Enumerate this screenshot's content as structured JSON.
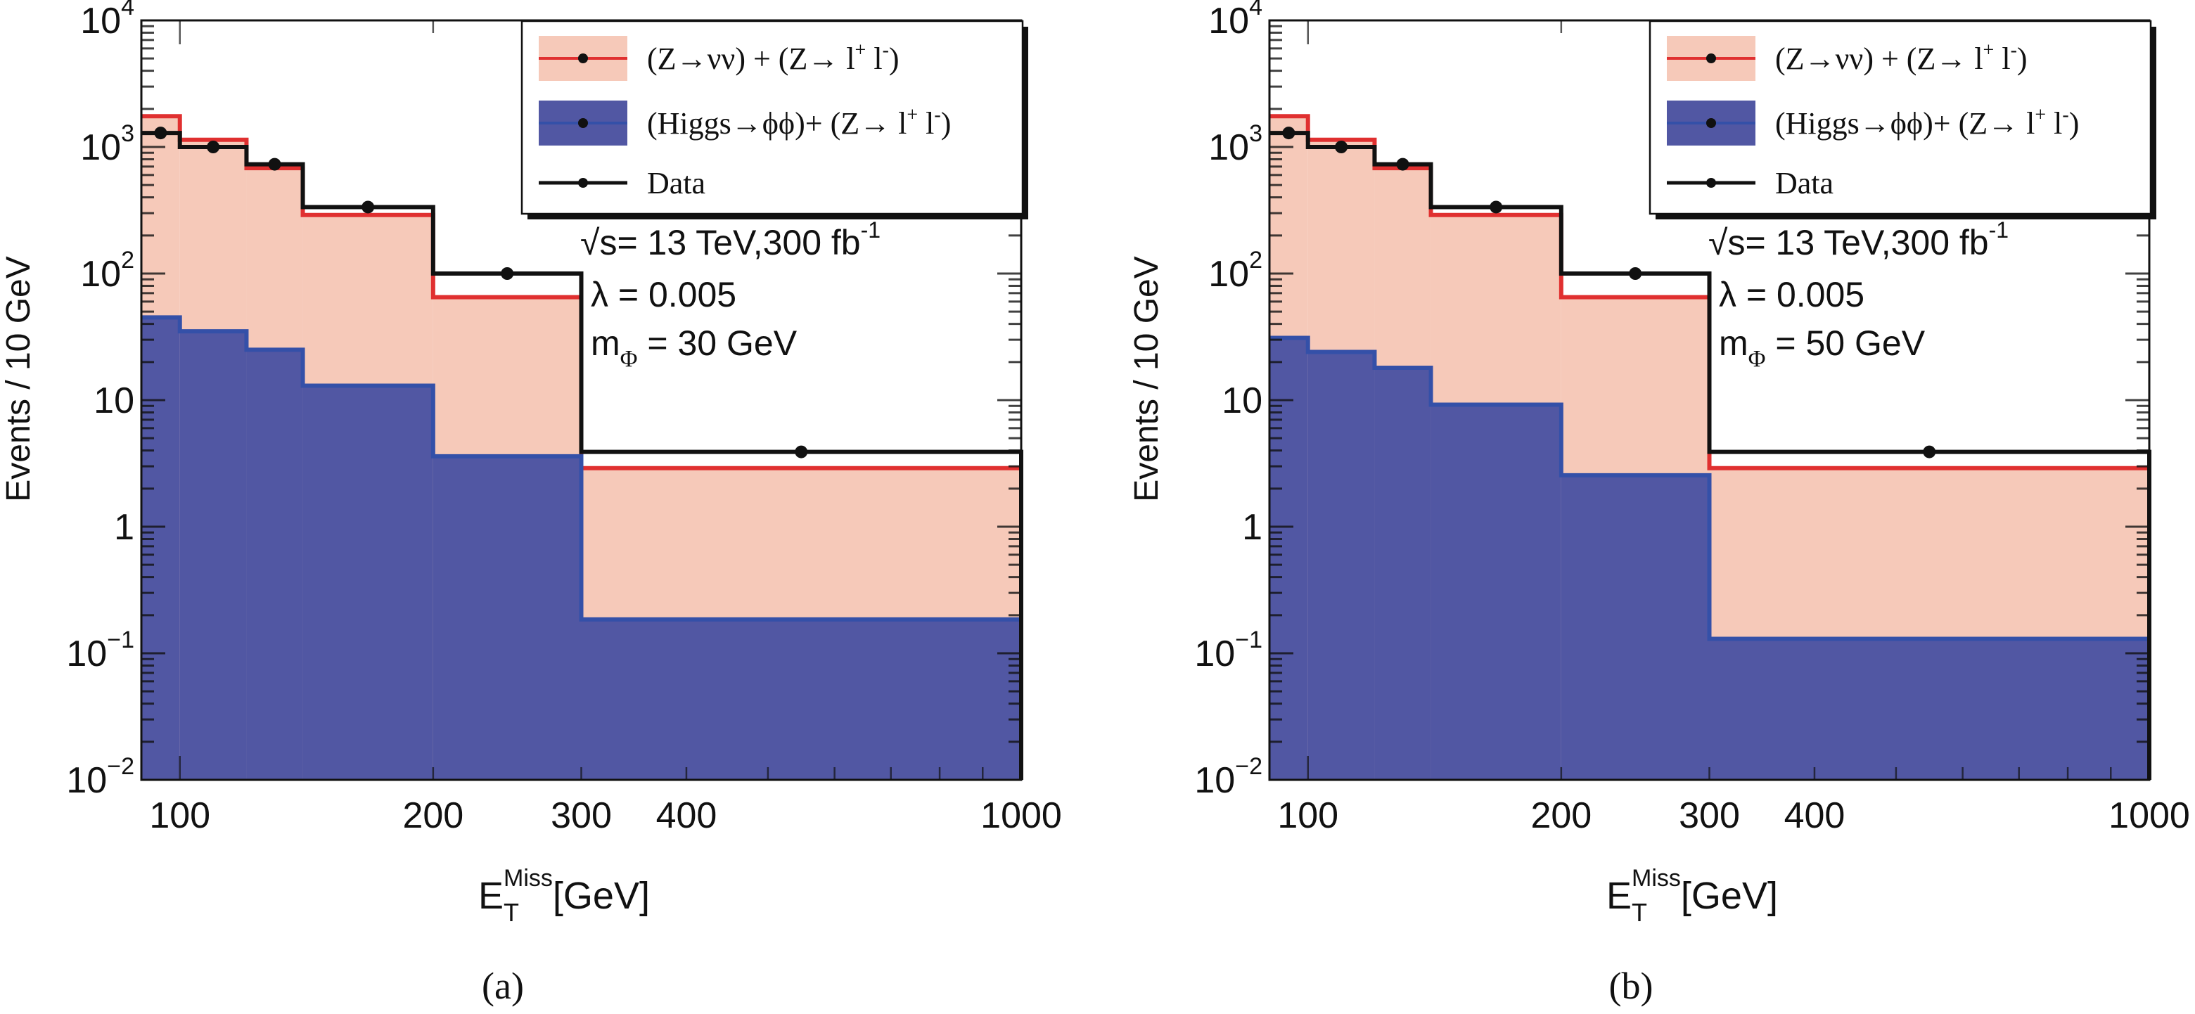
{
  "chart_data": [
    {
      "type": "bar",
      "panel_caption": "(a)",
      "ylabel": "Events / 10 GeV",
      "xlabel": "E_T^Miss [GeV]",
      "xlabel_main": "E",
      "xlabel_sub": "T",
      "xlabel_sup": "Miss",
      "xlabel_unit": "[GeV]",
      "xscale": "log",
      "yscale": "log",
      "xlim": [
        90,
        1000
      ],
      "ylim": [
        0.01,
        10000
      ],
      "xticks": [
        100,
        200,
        300,
        400,
        1000
      ],
      "xtick_labels": [
        "100",
        "200",
        "300",
        "400",
        "1000"
      ],
      "yticks": [
        0.01,
        0.1,
        1,
        10,
        100,
        1000,
        10000
      ],
      "ytick_labels": [
        {
          "base": "10",
          "exp": "−2"
        },
        {
          "base": "10",
          "exp": "−1"
        },
        {
          "base": "1",
          "exp": ""
        },
        {
          "base": "10",
          "exp": ""
        },
        {
          "base": "10",
          "exp": "2"
        },
        {
          "base": "10",
          "exp": "3"
        },
        {
          "base": "10",
          "exp": "4"
        }
      ],
      "bin_edges": [
        90,
        100,
        120,
        140,
        200,
        300,
        1000
      ],
      "series": [
        {
          "name": "(Z→νν) + (Z→ l⁺ l⁻)",
          "kind": "filled-step",
          "fill": "#f6c9b9",
          "line": "#e03030",
          "values": [
            1750,
            1140,
            680,
            290,
            65,
            2.9
          ]
        },
        {
          "name": "(Higgs→ϕϕ)+ (Z→ l⁺ l⁻)",
          "kind": "filled-step",
          "fill": "#5157a3",
          "line": "#3450a8",
          "values": [
            45,
            35,
            25,
            13,
            3.6,
            0.185
          ]
        },
        {
          "name": "Data",
          "kind": "step-with-markers",
          "line": "#111111",
          "values": [
            1290,
            1000,
            730,
            335,
            100,
            3.9
          ]
        }
      ],
      "legend": {
        "position": "top-right",
        "entries": [
          {
            "label_main": "(Z→νν) + (Z→ l",
            "sup1": "+",
            "mid": " l",
            "sup2": "-",
            "tail": ")"
          },
          {
            "label_main": "(Higgs→ϕϕ)+ (Z→ l",
            "sup1": "+",
            "mid": " l",
            "sup2": "-",
            "tail": ")"
          },
          {
            "label_main": "Data",
            "sup1": "",
            "mid": "",
            "sup2": "",
            "tail": ""
          }
        ]
      },
      "annotations": {
        "energy": "√s= 13 TeV,300 fb",
        "energy_sup": "-1",
        "lambda": "λ = 0.005",
        "mass_main": "m",
        "mass_sub": "Φ",
        "mass_rest": " = 30 GeV"
      }
    },
    {
      "type": "bar",
      "panel_caption": "(b)",
      "ylabel": "Events / 10 GeV",
      "xlabel": "E_T^Miss [GeV]",
      "xlabel_main": "E",
      "xlabel_sub": "T",
      "xlabel_sup": "Miss",
      "xlabel_unit": "[GeV]",
      "xscale": "log",
      "yscale": "log",
      "xlim": [
        90,
        1000
      ],
      "ylim": [
        0.01,
        10000
      ],
      "xticks": [
        100,
        200,
        300,
        400,
        1000
      ],
      "xtick_labels": [
        "100",
        "200",
        "300",
        "400",
        "1000"
      ],
      "yticks": [
        0.01,
        0.1,
        1,
        10,
        100,
        1000,
        10000
      ],
      "ytick_labels": [
        {
          "base": "10",
          "exp": "−2"
        },
        {
          "base": "10",
          "exp": "−1"
        },
        {
          "base": "1",
          "exp": ""
        },
        {
          "base": "10",
          "exp": ""
        },
        {
          "base": "10",
          "exp": "2"
        },
        {
          "base": "10",
          "exp": "3"
        },
        {
          "base": "10",
          "exp": "4"
        }
      ],
      "bin_edges": [
        90,
        100,
        120,
        140,
        200,
        300,
        1000
      ],
      "series": [
        {
          "name": "(Z→νν) + (Z→ l⁺ l⁻)",
          "kind": "filled-step",
          "fill": "#f6c9b9",
          "line": "#e03030",
          "values": [
            1750,
            1140,
            680,
            290,
            65,
            2.9
          ]
        },
        {
          "name": "(Higgs→ϕϕ)+ (Z→ l⁺ l⁻)",
          "kind": "filled-step",
          "fill": "#5157a3",
          "line": "#3450a8",
          "values": [
            31,
            24,
            18,
            9.2,
            2.55,
            0.13
          ]
        },
        {
          "name": "Data",
          "kind": "step-with-markers",
          "line": "#111111",
          "values": [
            1290,
            1000,
            730,
            335,
            100,
            3.9
          ]
        }
      ],
      "legend": {
        "position": "top-right",
        "entries": [
          {
            "label_main": "(Z→νν) + (Z→ l",
            "sup1": "+",
            "mid": " l",
            "sup2": "-",
            "tail": ")"
          },
          {
            "label_main": "(Higgs→ϕϕ)+ (Z→ l",
            "sup1": "+",
            "mid": " l",
            "sup2": "-",
            "tail": ")"
          },
          {
            "label_main": "Data",
            "sup1": "",
            "mid": "",
            "sup2": "",
            "tail": ""
          }
        ]
      },
      "annotations": {
        "energy": "√s= 13 TeV,300 fb",
        "energy_sup": "-1",
        "lambda": "λ = 0.005",
        "mass_main": "m",
        "mass_sub": "Φ",
        "mass_rest": " = 50 GeV"
      }
    }
  ]
}
